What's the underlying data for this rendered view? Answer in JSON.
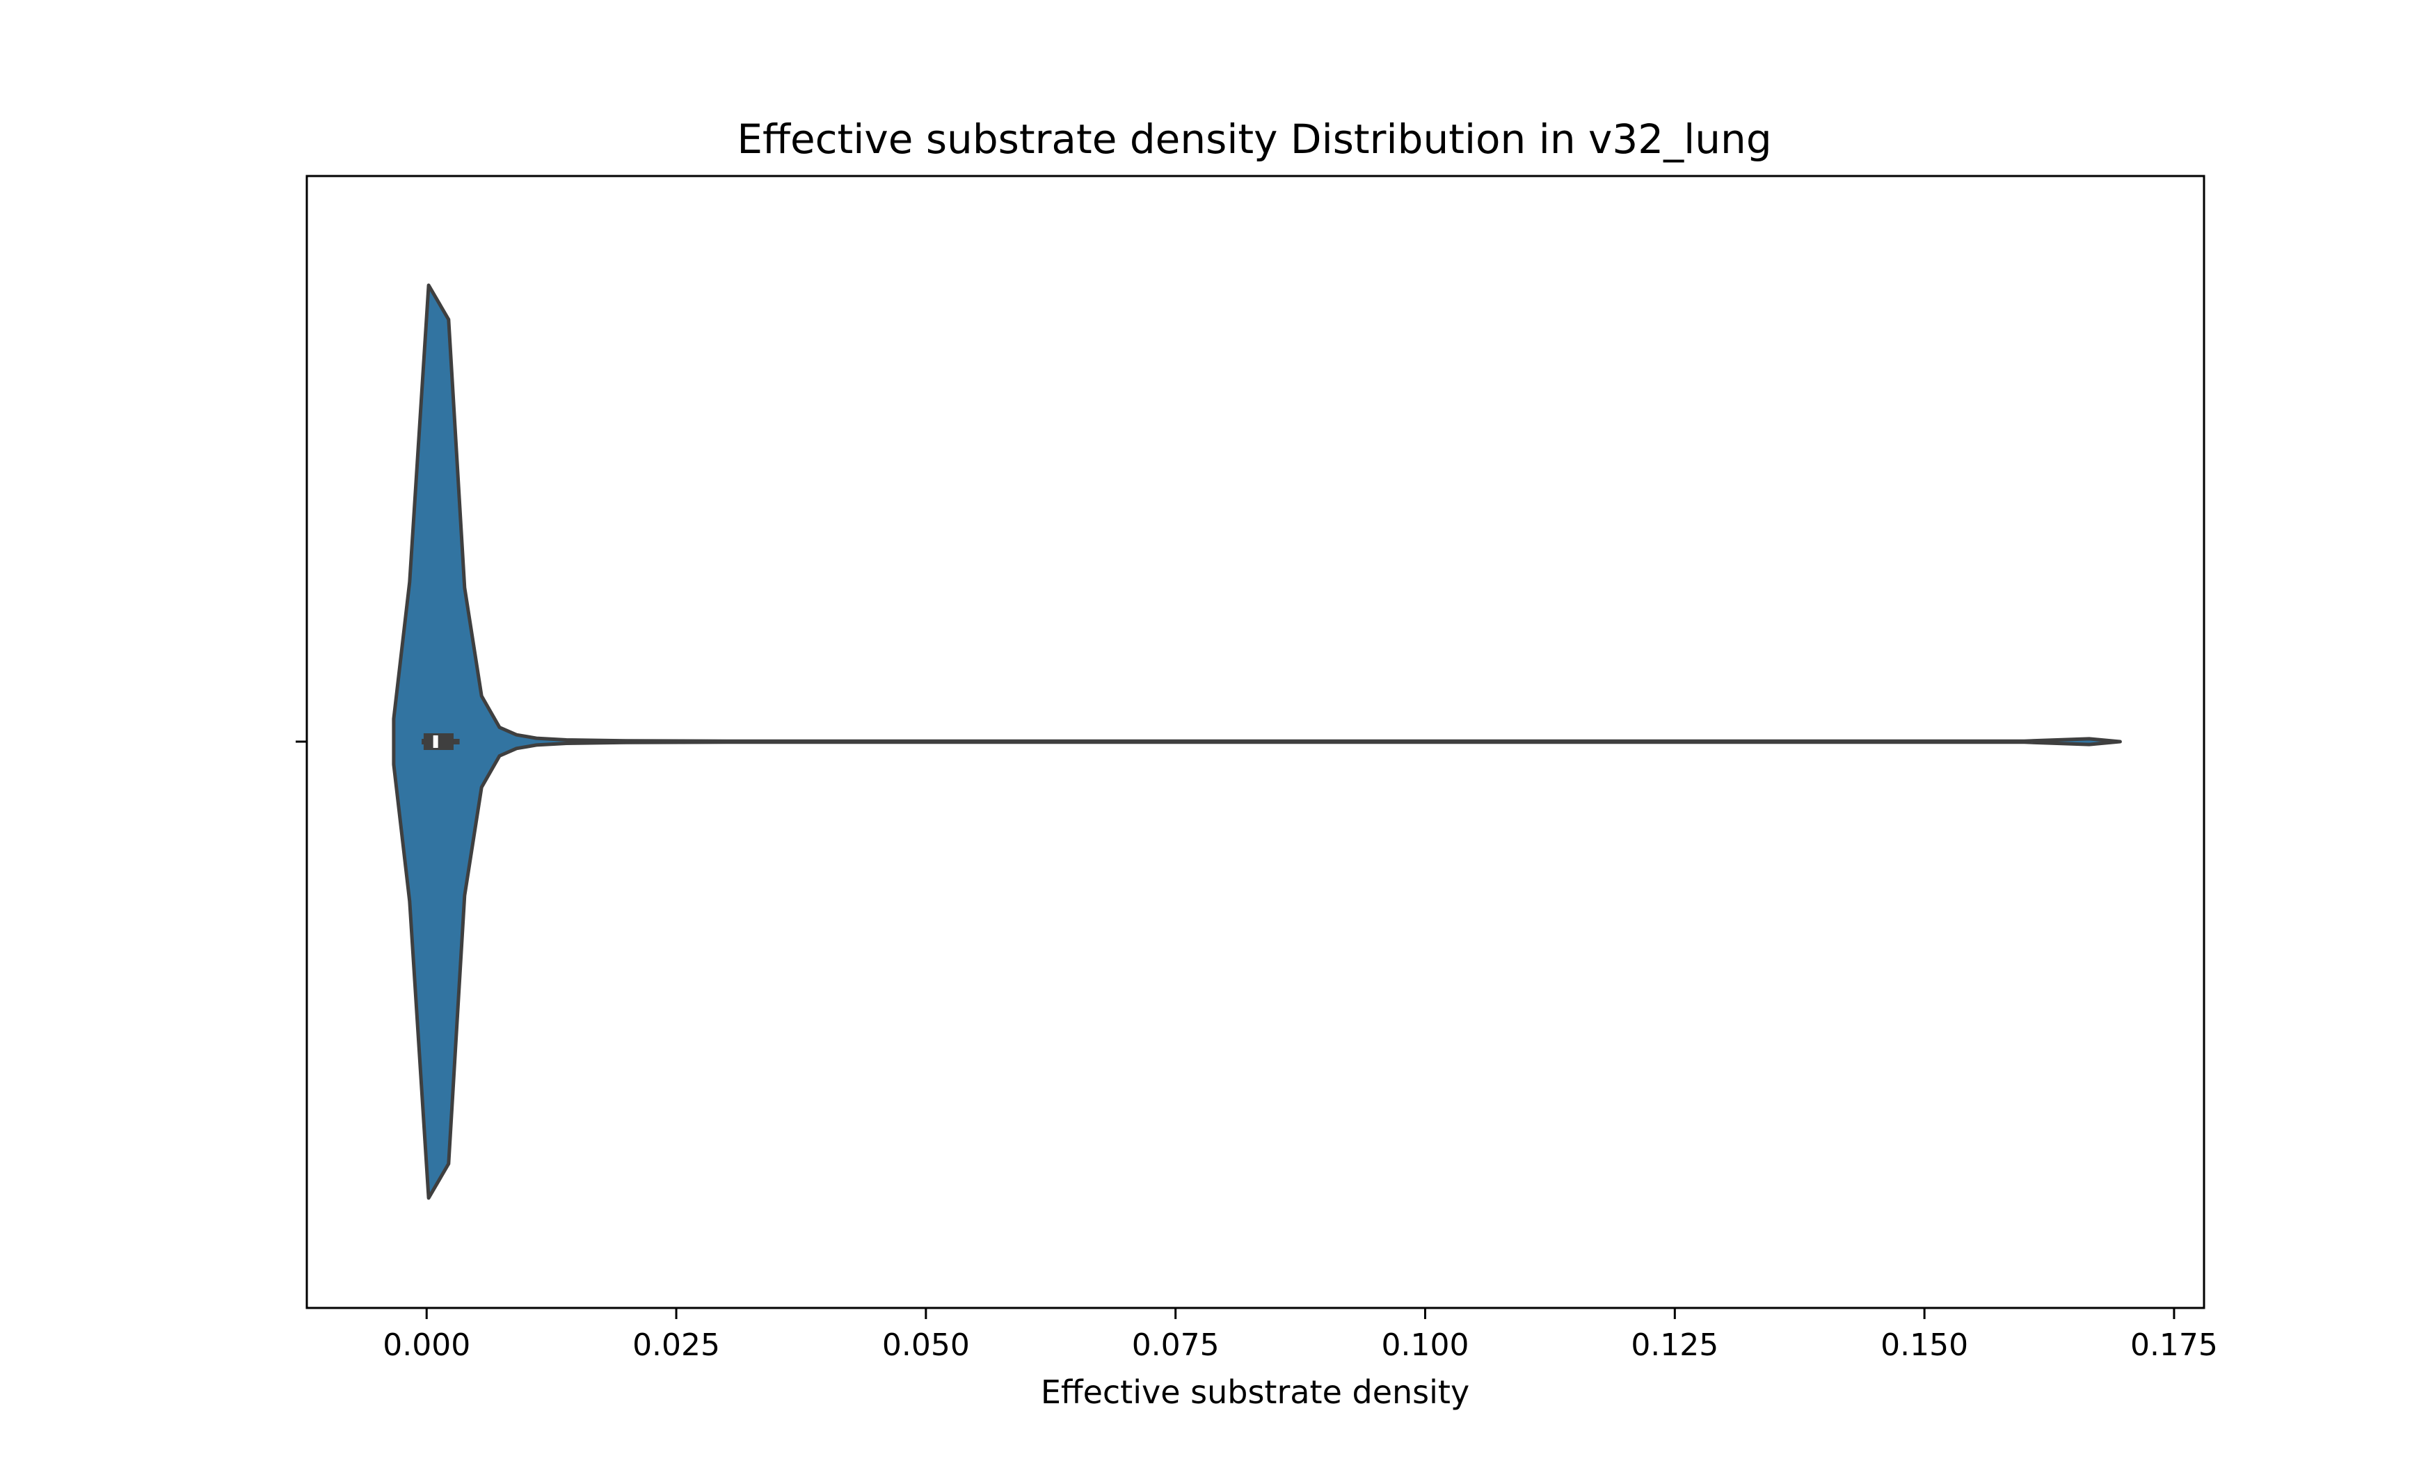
{
  "chart_data": {
    "type": "violin",
    "orientation": "horizontal",
    "title": "Effective substrate density Distribution in v32_lung",
    "xlabel": "Effective substrate density",
    "ylabel": "",
    "xlim": [
      -0.012,
      0.178
    ],
    "xticks": [
      0.0,
      0.025,
      0.05,
      0.075,
      0.1,
      0.125,
      0.15,
      0.175
    ],
    "xtick_labels": [
      "0.000",
      "0.025",
      "0.050",
      "0.075",
      "0.100",
      "0.125",
      "0.150",
      "0.175"
    ],
    "grid": false,
    "legend": "none",
    "violin_color": "#3274a1",
    "edge_color": "#3f3f3f",
    "density_profile": [
      {
        "x": -0.0033,
        "half_width": 0.02
      },
      {
        "x": -0.0033,
        "half_width": 0.04
      },
      {
        "x": -0.0017,
        "half_width": 0.28
      },
      {
        "x": 0.0002,
        "half_width": 0.8
      },
      {
        "x": 0.0022,
        "half_width": 0.74
      },
      {
        "x": 0.0038,
        "half_width": 0.27
      },
      {
        "x": 0.0055,
        "half_width": 0.08
      },
      {
        "x": 0.0073,
        "half_width": 0.025
      },
      {
        "x": 0.009,
        "half_width": 0.012
      },
      {
        "x": 0.011,
        "half_width": 0.006
      },
      {
        "x": 0.014,
        "half_width": 0.003
      },
      {
        "x": 0.02,
        "half_width": 0.0015
      },
      {
        "x": 0.03,
        "half_width": 0.001
      },
      {
        "x": 0.1,
        "half_width": 0.001
      },
      {
        "x": 0.16,
        "half_width": 0.001
      },
      {
        "x": 0.1665,
        "half_width": 0.005
      },
      {
        "x": 0.1696,
        "half_width": 0.0
      }
    ],
    "box": {
      "q1": -0.0003,
      "median": 0.0009,
      "q3": 0.0027,
      "whisker_low": -0.0005,
      "whisker_high": 0.0033
    }
  }
}
